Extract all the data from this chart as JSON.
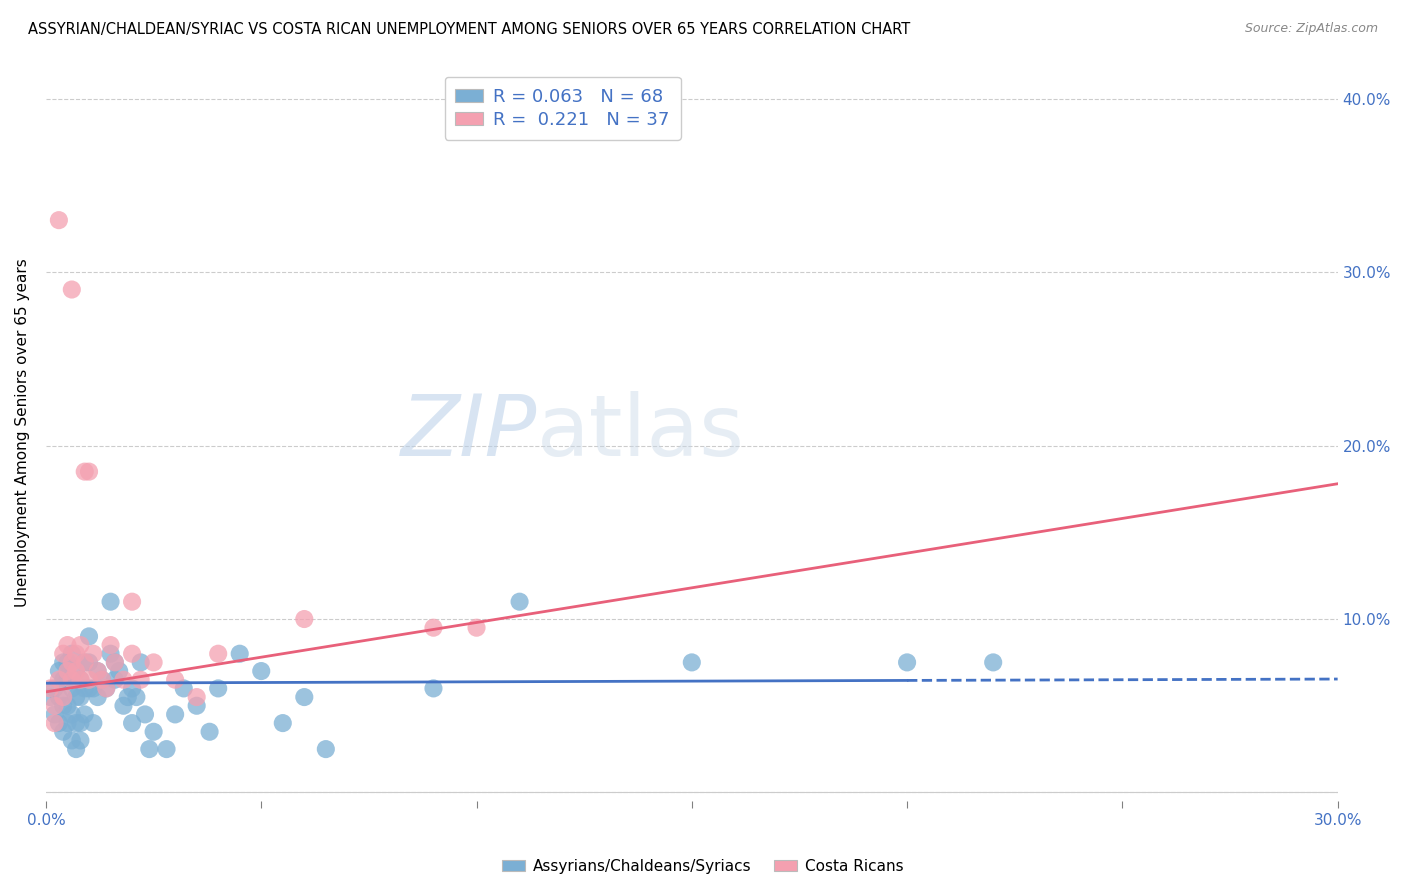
{
  "title": "ASSYRIAN/CHALDEAN/SYRIAC VS COSTA RICAN UNEMPLOYMENT AMONG SENIORS OVER 65 YEARS CORRELATION CHART",
  "source": "Source: ZipAtlas.com",
  "ylabel": "Unemployment Among Seniors over 65 years",
  "xlim": [
    0.0,
    0.3
  ],
  "ylim": [
    -0.005,
    0.42
  ],
  "xticks": [
    0.0,
    0.05,
    0.1,
    0.15,
    0.2,
    0.25,
    0.3
  ],
  "xticklabels": [
    "0.0%",
    "",
    "",
    "",
    "",
    "",
    "30.0%"
  ],
  "yticks": [
    0.0,
    0.1,
    0.2,
    0.3,
    0.4
  ],
  "yticklabels_right": [
    "",
    "10.0%",
    "20.0%",
    "30.0%",
    "40.0%"
  ],
  "blue_color": "#7bafd4",
  "pink_color": "#f4a0b0",
  "blue_line_color": "#4472c4",
  "pink_line_color": "#e8607a",
  "legend_label_blue": "Assyrians/Chaldeans/Syriacs",
  "legend_label_pink": "Costa Ricans",
  "blue_x": [
    0.001,
    0.002,
    0.002,
    0.003,
    0.003,
    0.003,
    0.004,
    0.004,
    0.004,
    0.004,
    0.005,
    0.005,
    0.005,
    0.005,
    0.006,
    0.006,
    0.006,
    0.006,
    0.007,
    0.007,
    0.007,
    0.007,
    0.008,
    0.008,
    0.008,
    0.008,
    0.009,
    0.009,
    0.009,
    0.01,
    0.01,
    0.01,
    0.011,
    0.011,
    0.012,
    0.012,
    0.013,
    0.014,
    0.015,
    0.015,
    0.016,
    0.016,
    0.017,
    0.018,
    0.019,
    0.02,
    0.02,
    0.021,
    0.022,
    0.023,
    0.024,
    0.025,
    0.028,
    0.03,
    0.032,
    0.035,
    0.038,
    0.04,
    0.045,
    0.05,
    0.055,
    0.06,
    0.065,
    0.09,
    0.11,
    0.15,
    0.2,
    0.22
  ],
  "blue_y": [
    0.055,
    0.06,
    0.045,
    0.07,
    0.055,
    0.04,
    0.075,
    0.065,
    0.05,
    0.035,
    0.075,
    0.065,
    0.05,
    0.04,
    0.08,
    0.06,
    0.045,
    0.03,
    0.07,
    0.055,
    0.04,
    0.025,
    0.065,
    0.055,
    0.04,
    0.03,
    0.075,
    0.06,
    0.045,
    0.09,
    0.075,
    0.06,
    0.06,
    0.04,
    0.07,
    0.055,
    0.065,
    0.06,
    0.11,
    0.08,
    0.075,
    0.065,
    0.07,
    0.05,
    0.055,
    0.06,
    0.04,
    0.055,
    0.075,
    0.045,
    0.025,
    0.035,
    0.025,
    0.045,
    0.06,
    0.05,
    0.035,
    0.06,
    0.08,
    0.07,
    0.04,
    0.055,
    0.025,
    0.06,
    0.11,
    0.075,
    0.075,
    0.075
  ],
  "pink_x": [
    0.001,
    0.002,
    0.002,
    0.003,
    0.004,
    0.004,
    0.005,
    0.005,
    0.006,
    0.006,
    0.007,
    0.007,
    0.008,
    0.008,
    0.009,
    0.01,
    0.01,
    0.011,
    0.012,
    0.013,
    0.014,
    0.015,
    0.016,
    0.018,
    0.02,
    0.022,
    0.025,
    0.03,
    0.035,
    0.04,
    0.003,
    0.006,
    0.009,
    0.02,
    0.06,
    0.09,
    0.1
  ],
  "pink_y": [
    0.06,
    0.05,
    0.04,
    0.065,
    0.055,
    0.08,
    0.07,
    0.085,
    0.075,
    0.065,
    0.08,
    0.07,
    0.065,
    0.085,
    0.075,
    0.065,
    0.185,
    0.08,
    0.07,
    0.065,
    0.06,
    0.085,
    0.075,
    0.065,
    0.08,
    0.065,
    0.075,
    0.065,
    0.055,
    0.08,
    0.33,
    0.29,
    0.185,
    0.11,
    0.1,
    0.095,
    0.095
  ],
  "blue_line_x0": 0.0,
  "blue_line_x1": 0.2,
  "blue_line_x2": 0.3,
  "blue_line_y0": 0.063,
  "blue_line_slope": 0.008,
  "pink_line_x0": 0.0,
  "pink_line_x1": 0.3,
  "pink_line_y0": 0.058,
  "pink_line_slope": 0.4
}
